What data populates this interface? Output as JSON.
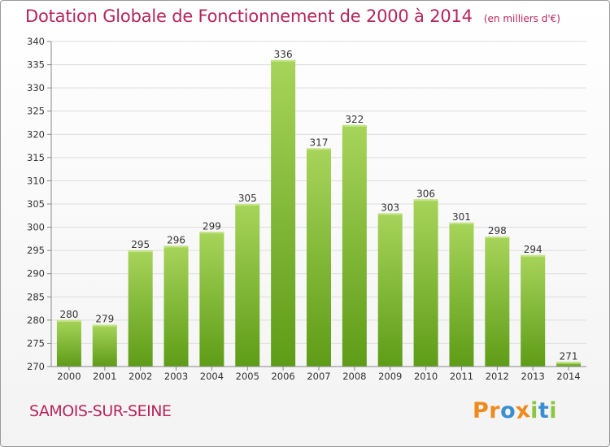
{
  "title": "Dotation Globale de Fonctionnement de 2000 à 2014",
  "subtitle": "(en milliers d'€)",
  "commune": "SAMOIS-SUR-SEINE",
  "logo": {
    "letters": [
      "P",
      "r",
      "o",
      "x",
      "i",
      "t",
      "i"
    ],
    "colors": [
      "#f08a1d",
      "#f08a1d",
      "#3a8fd1",
      "#f08a1d",
      "#8cc63f",
      "#3a8fd1",
      "#8cc63f"
    ]
  },
  "colors": {
    "bar_top": "#a7d45a",
    "bar_bottom": "#5e9c17",
    "title": "#b5255b",
    "grid": "#dddddd",
    "axis_text": "#333333"
  },
  "chart_data": {
    "type": "bar",
    "categories": [
      "2000",
      "2001",
      "2002",
      "2003",
      "2004",
      "2005",
      "2006",
      "2007",
      "2008",
      "2009",
      "2010",
      "2011",
      "2012",
      "2013",
      "2014"
    ],
    "values": [
      280,
      279,
      295,
      296,
      299,
      305,
      336,
      317,
      322,
      303,
      306,
      301,
      298,
      294,
      271
    ],
    "data_labels": [
      "280",
      "279",
      "295",
      "296",
      "299",
      "305",
      "336",
      "317",
      "322",
      "303",
      "306",
      "301",
      "298",
      "294",
      "271"
    ],
    "ylim": [
      270,
      340
    ],
    "yticks": [
      "270",
      "275",
      "280",
      "285",
      "290",
      "295",
      "300",
      "305",
      "310",
      "315",
      "320",
      "325",
      "330",
      "335",
      "340"
    ],
    "grid": true,
    "legend": "none"
  }
}
